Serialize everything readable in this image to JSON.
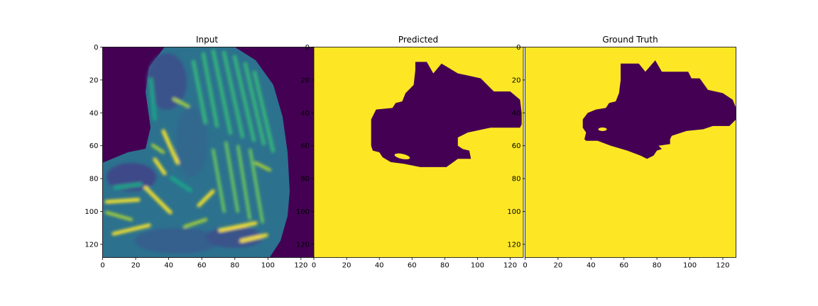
{
  "chart_data": [
    {
      "type": "heatmap",
      "title": "Input",
      "colormap": "viridis",
      "xlim": [
        0,
        128
      ],
      "ylim": [
        128,
        0
      ],
      "xticks": [
        "0",
        "20",
        "40",
        "60",
        "80",
        "100",
        "120"
      ],
      "yticks": [
        "0",
        "20",
        "40",
        "60",
        "80",
        "100",
        "120"
      ],
      "background_color": "#440154",
      "content": "image-like intensity map of a figure on a dark background"
    },
    {
      "type": "heatmap",
      "title": "Predicted",
      "colormap": "viridis",
      "xlim": [
        0,
        128
      ],
      "ylim": [
        128,
        0
      ],
      "xticks": [
        "0",
        "20",
        "40",
        "60",
        "80",
        "100",
        "120"
      ],
      "yticks": [
        "0",
        "20",
        "40",
        "60",
        "80",
        "100",
        "120"
      ],
      "background_color": "#fde725",
      "region_color": "#440154",
      "region_outline": [
        [
          62,
          9
        ],
        [
          69,
          9
        ],
        [
          73,
          16
        ],
        [
          78,
          10
        ],
        [
          88,
          16
        ],
        [
          93,
          17
        ],
        [
          102,
          19
        ],
        [
          110,
          27
        ],
        [
          120,
          27
        ],
        [
          126,
          32
        ],
        [
          127,
          40
        ],
        [
          127,
          47
        ],
        [
          126,
          49
        ],
        [
          108,
          49
        ],
        [
          94,
          52
        ],
        [
          88,
          55
        ],
        [
          88,
          60
        ],
        [
          91,
          62
        ],
        [
          95,
          63
        ],
        [
          96,
          68
        ],
        [
          88,
          68
        ],
        [
          81,
          73
        ],
        [
          65,
          73
        ],
        [
          55,
          71
        ],
        [
          47,
          70
        ],
        [
          42,
          67
        ],
        [
          40,
          64
        ],
        [
          36,
          63
        ],
        [
          35,
          60
        ],
        [
          35,
          55
        ],
        [
          35,
          48
        ],
        [
          35,
          44
        ],
        [
          38,
          38
        ],
        [
          48,
          37
        ],
        [
          50,
          34
        ],
        [
          54,
          33
        ],
        [
          56,
          28
        ],
        [
          61,
          23
        ],
        [
          62,
          14
        ]
      ]
    },
    {
      "type": "heatmap",
      "title": "Ground Truth",
      "colormap": "viridis",
      "xlim": [
        0,
        128
      ],
      "ylim": [
        128,
        0
      ],
      "xticks": [
        "0",
        "20",
        "40",
        "60",
        "80",
        "100",
        "120"
      ],
      "yticks": [
        "0",
        "20",
        "40",
        "60",
        "80",
        "100",
        "120"
      ],
      "background_color": "#fde725",
      "region_color": "#440154",
      "region_outline": [
        [
          58,
          10
        ],
        [
          69,
          10
        ],
        [
          73,
          15
        ],
        [
          79,
          8
        ],
        [
          83,
          15
        ],
        [
          89,
          15
        ],
        [
          99,
          15
        ],
        [
          101,
          19
        ],
        [
          106,
          19
        ],
        [
          111,
          26
        ],
        [
          120,
          28
        ],
        [
          126,
          32
        ],
        [
          128,
          37
        ],
        [
          128,
          44
        ],
        [
          124,
          48
        ],
        [
          114,
          48
        ],
        [
          108,
          50
        ],
        [
          98,
          51
        ],
        [
          89,
          54
        ],
        [
          88,
          56
        ],
        [
          88,
          59
        ],
        [
          81,
          60
        ],
        [
          83,
          62
        ],
        [
          80,
          63
        ],
        [
          78,
          66
        ],
        [
          74,
          68
        ],
        [
          70,
          66
        ],
        [
          62,
          63
        ],
        [
          52,
          60
        ],
        [
          44,
          57
        ],
        [
          37,
          57
        ],
        [
          36,
          56
        ],
        [
          37,
          52
        ],
        [
          35,
          49
        ],
        [
          35,
          44
        ],
        [
          38,
          40
        ],
        [
          43,
          38
        ],
        [
          49,
          37
        ],
        [
          51,
          34
        ],
        [
          55,
          33
        ],
        [
          57,
          28
        ],
        [
          58,
          20
        ]
      ]
    }
  ]
}
